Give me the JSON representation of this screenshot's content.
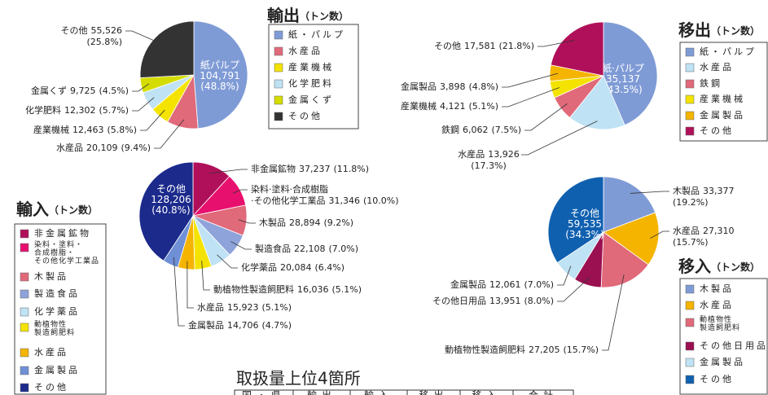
{
  "chart_data": [
    {
      "type": "pie",
      "title": "輸出",
      "title_unit": "（トン数）",
      "categories": [
        "紙・パルプ",
        "水産品",
        "産業機械",
        "化学肥料",
        "金属くず",
        "その他"
      ],
      "labels": [
        "紙パルプ",
        "水産品",
        "産業機械",
        "化学肥料",
        "金属くず",
        "その他"
      ],
      "values": [
        104791,
        20109,
        12463,
        12302,
        9725,
        55526
      ],
      "value_labels": [
        "104,791",
        "20,109",
        "12,463",
        "12,302",
        "9,725",
        "55,526"
      ],
      "percents": [
        48.8,
        9.4,
        5.8,
        5.7,
        4.5,
        25.8
      ],
      "percent_labels": [
        "(48.8%)",
        "(9.4%)",
        "(5.8%)",
        "(5.7%)",
        "(4.5%)",
        "(25.8%)"
      ],
      "colors": [
        "#7f9bd6",
        "#e0697a",
        "#f4e300",
        "#bfe2f4",
        "#d4dc00",
        "#333333"
      ]
    },
    {
      "type": "pie",
      "title": "移出",
      "title_unit": "（トン数）",
      "categories": [
        "紙・パルプ",
        "水産品",
        "鉄鋼",
        "産業機械",
        "金属製品",
        "その他"
      ],
      "labels": [
        "紙·パルプ",
        "水産品",
        "鉄鋼",
        "産業機械",
        "金属製品",
        "その他"
      ],
      "values": [
        35137,
        13926,
        6062,
        4121,
        3898,
        17581
      ],
      "value_labels": [
        "35,137",
        "13,926",
        "6,062",
        "4,121",
        "3,898",
        "17,581"
      ],
      "percents": [
        43.5,
        17.3,
        7.5,
        5.1,
        4.8,
        21.8
      ],
      "percent_labels": [
        "(43.5%)",
        "(17.3%)",
        "(7.5%)",
        "(5.1%)",
        "(4.8%)",
        "(21.8%)"
      ],
      "colors": [
        "#7f9bd6",
        "#bfe2f4",
        "#e0697a",
        "#f4e300",
        "#f4b400",
        "#b0105a"
      ]
    },
    {
      "type": "pie",
      "title": "輸入",
      "title_unit": "（トン数）",
      "categories": [
        "非金属鉱物",
        "染料・塗料・合成樹脂・その他化学工業品",
        "木製品",
        "製造食品",
        "化学薬品",
        "動植物性製造飼肥料",
        "水産品",
        "金属製品",
        "その他"
      ],
      "labels": [
        "非金属鉱物",
        "染料·塗料·合成樹脂·その他化学工業品",
        "木製品",
        "製造食品",
        "化学薬品",
        "動植物性製造飼肥料",
        "水産品",
        "金属製品",
        "その他"
      ],
      "values": [
        37237,
        31346,
        28894,
        22108,
        20084,
        16036,
        15923,
        14706,
        128206
      ],
      "value_labels": [
        "37,237",
        "31,346",
        "28,894",
        "22,108",
        "20,084",
        "16,036",
        "15,923",
        "14,706",
        "128,206"
      ],
      "percents": [
        11.8,
        10.0,
        9.2,
        7.0,
        6.4,
        5.1,
        5.1,
        4.7,
        40.8
      ],
      "percent_labels": [
        "(11.8%)",
        "(10.0%)",
        "(9.2%)",
        "(7.0%)",
        "(6.4%)",
        "(5.1%)",
        "(5.1%)",
        "(4.7%)",
        "(40.8%)"
      ],
      "colors": [
        "#b0105a",
        "#e8106e",
        "#e0697a",
        "#8ea3da",
        "#bfe2f4",
        "#f4e300",
        "#f4b400",
        "#6f8fd6",
        "#1c2a8c"
      ]
    },
    {
      "type": "pie",
      "title": "移入",
      "title_unit": "（トン数）",
      "categories": [
        "木製品",
        "水産品",
        "動植物性製造飼肥料",
        "その他日用品",
        "金属製品",
        "その他"
      ],
      "labels": [
        "木製品",
        "水産品",
        "動植物性製造飼肥料",
        "その他日用品",
        "金属製品",
        "その他"
      ],
      "values": [
        33377,
        27310,
        27205,
        13951,
        12061,
        59535
      ],
      "value_labels": [
        "33,377",
        "27,310",
        "27,205",
        "13,951",
        "12,061",
        "59,535"
      ],
      "percents": [
        19.2,
        15.7,
        15.7,
        8.0,
        7.0,
        34.3
      ],
      "percent_labels": [
        "(19.2%)",
        "(15.7%)",
        "(15.7%)",
        "(8.0%)",
        "(7.0%)",
        "(34.3%)"
      ],
      "colors": [
        "#7f9bd6",
        "#f4b400",
        "#e0697a",
        "#9a1050",
        "#bfe2f4",
        "#1060b0"
      ]
    }
  ],
  "table": {
    "title": "取扱量上位4箇所",
    "header": [
      "国・県",
      "輸出",
      "輸入",
      "移出",
      "移入",
      "合計"
    ]
  }
}
